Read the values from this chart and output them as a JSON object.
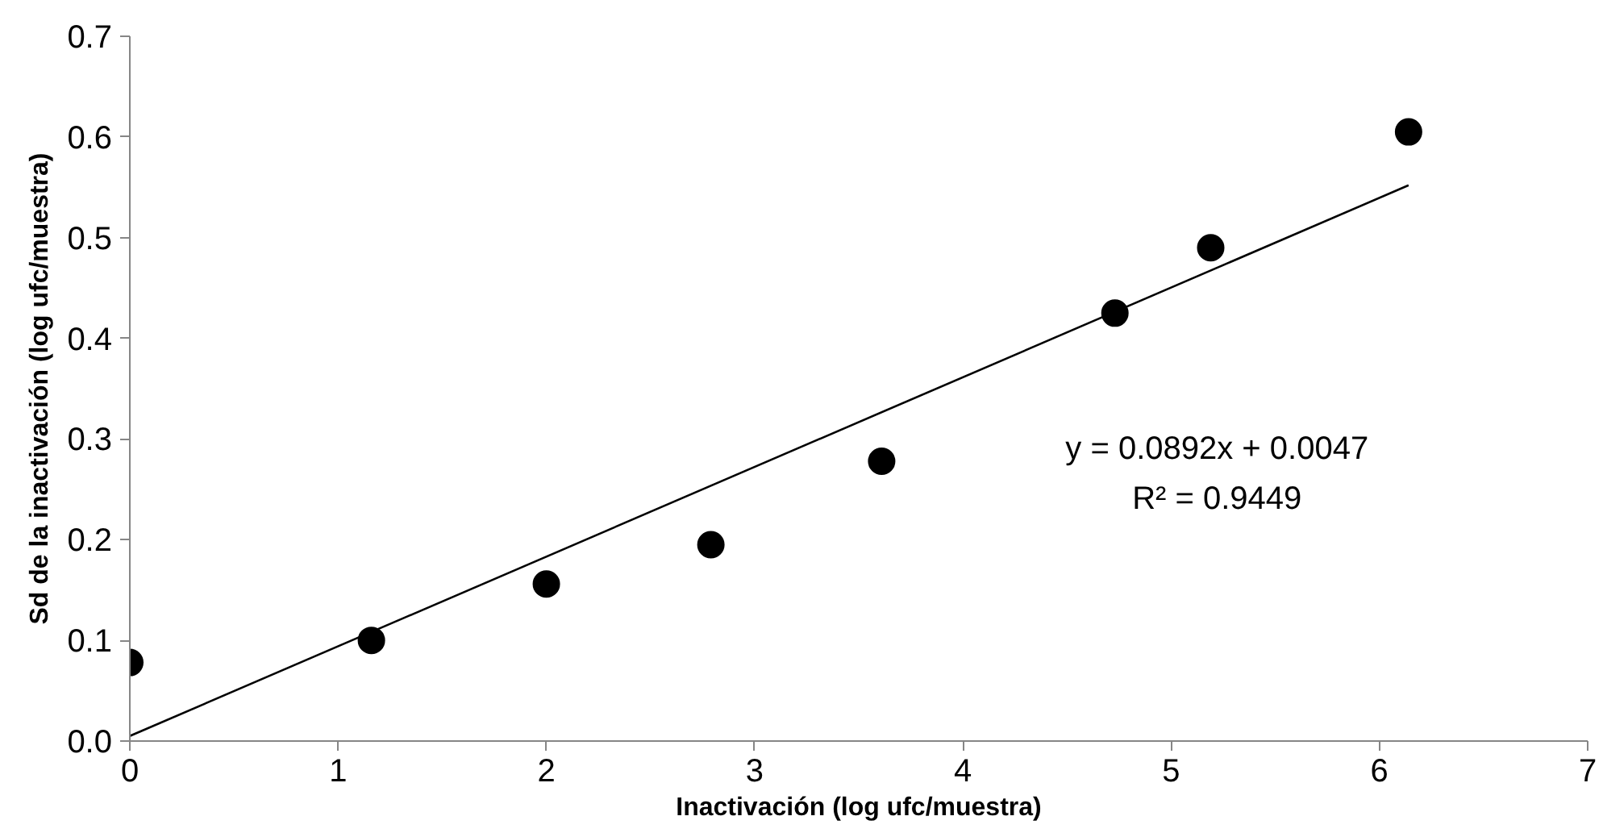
{
  "chart_data": {
    "type": "scatter",
    "xlabel": "Inactivación (log ufc/muestra)",
    "ylabel": "Sd de la inactivación (log ufc/muestra)",
    "x": [
      0,
      1.16,
      2.0,
      2.79,
      3.61,
      4.73,
      5.19,
      6.14
    ],
    "xlim": [
      0,
      7
    ],
    "xticks": [
      0,
      1,
      2,
      3,
      4,
      5,
      6,
      7
    ],
    "ylim": [
      0,
      0.7
    ],
    "yticks": [
      {
        "value": 0,
        "label": "0.0"
      },
      0.1,
      0.2,
      0.3,
      0.4,
      0.5,
      0.6,
      0.7
    ],
    "series": [
      {
        "color": "#000000",
        "marker": "circle",
        "values": [
          0.078,
          0.1,
          0.156,
          0.195,
          0.278,
          0.425,
          0.49,
          0.605
        ]
      },
      {
        "type": "line",
        "color": "#000000",
        "x": [
          0,
          6.14
        ],
        "values": [
          0.005,
          0.552
        ]
      }
    ],
    "annotations": [
      "y = 0.0892x + 0.0047",
      "R² = 0.9449"
    ],
    "grid": false
  }
}
